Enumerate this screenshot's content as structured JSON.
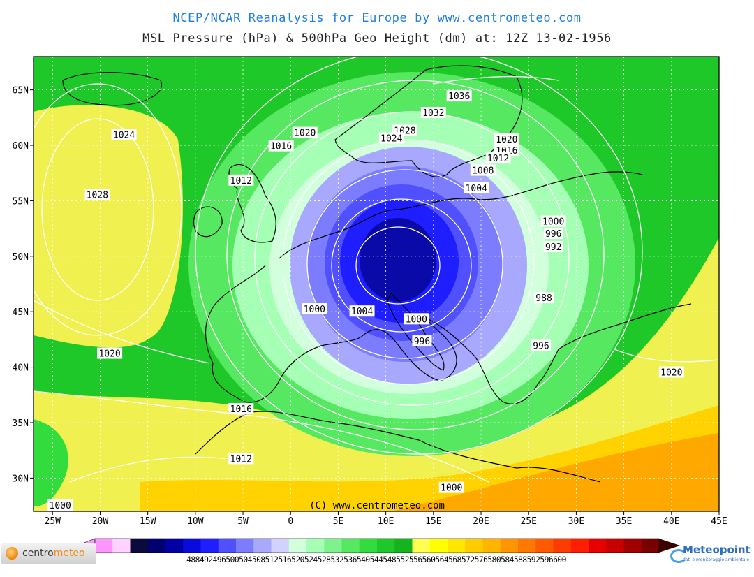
{
  "header": {
    "title": "NCEP/NCAR Reanalysis for Europe by www.centrometeo.com",
    "subtitle": "MSL Pressure (hPa) & 500hPa Geo Height (dm) at: 12Z 13-02-1956"
  },
  "map": {
    "lon_range": [
      -27,
      45
    ],
    "lat_range": [
      27,
      68
    ],
    "lat_ticks": [
      {
        "value": 30,
        "label": "30N"
      },
      {
        "value": 35,
        "label": "35N"
      },
      {
        "value": 40,
        "label": "40N"
      },
      {
        "value": 45,
        "label": "45N"
      },
      {
        "value": 50,
        "label": "50N"
      },
      {
        "value": 55,
        "label": "55N"
      },
      {
        "value": 60,
        "label": "60N"
      },
      {
        "value": 65,
        "label": "65N"
      }
    ],
    "lon_ticks": [
      {
        "value": -25,
        "label": "25W"
      },
      {
        "value": -20,
        "label": "20W"
      },
      {
        "value": -15,
        "label": "15W"
      },
      {
        "value": -10,
        "label": "10W"
      },
      {
        "value": -5,
        "label": "5W"
      },
      {
        "value": 0,
        "label": "0"
      },
      {
        "value": 5,
        "label": "5E"
      },
      {
        "value": 10,
        "label": "10E"
      },
      {
        "value": 15,
        "label": "15E"
      },
      {
        "value": 20,
        "label": "20E"
      },
      {
        "value": 25,
        "label": "25E"
      },
      {
        "value": 30,
        "label": "30E"
      },
      {
        "value": 35,
        "label": "35E"
      },
      {
        "value": 40,
        "label": "40E"
      },
      {
        "value": 45,
        "label": "45E"
      }
    ],
    "isobar_labels": [
      {
        "text": "1036",
        "lon": 17.7,
        "lat": 64.4
      },
      {
        "text": "1032",
        "lon": 15.0,
        "lat": 62.9
      },
      {
        "text": "1028",
        "lon": 12.0,
        "lat": 61.3
      },
      {
        "text": "1024",
        "lon": 10.6,
        "lat": 60.6
      },
      {
        "text": "1020",
        "lon": 1.5,
        "lat": 61.1
      },
      {
        "text": "1016",
        "lon": -1.0,
        "lat": 59.9
      },
      {
        "text": "1012",
        "lon": -5.2,
        "lat": 56.8
      },
      {
        "text": "1020",
        "lon": 22.7,
        "lat": 60.5
      },
      {
        "text": "1016",
        "lon": 22.7,
        "lat": 59.5
      },
      {
        "text": "1012",
        "lon": 21.8,
        "lat": 58.8
      },
      {
        "text": "1008",
        "lon": 20.2,
        "lat": 57.7
      },
      {
        "text": "1004",
        "lon": 19.5,
        "lat": 56.1
      },
      {
        "text": "1000",
        "lon": 27.6,
        "lat": 53.1
      },
      {
        "text": "996",
        "lon": 27.6,
        "lat": 52.0
      },
      {
        "text": "992",
        "lon": 27.6,
        "lat": 50.8
      },
      {
        "text": "988",
        "lon": 26.6,
        "lat": 46.2
      },
      {
        "text": "1000",
        "lon": 2.5,
        "lat": 45.2
      },
      {
        "text": "1004",
        "lon": 7.5,
        "lat": 45.0
      },
      {
        "text": "1000",
        "lon": 13.2,
        "lat": 44.3
      },
      {
        "text": "996",
        "lon": 13.8,
        "lat": 42.3
      },
      {
        "text": "996",
        "lon": 26.3,
        "lat": 41.9
      },
      {
        "text": "1020",
        "lon": 40.0,
        "lat": 39.5
      },
      {
        "text": "1024",
        "lon": -17.5,
        "lat": 60.9
      },
      {
        "text": "1028",
        "lon": -20.3,
        "lat": 55.5
      },
      {
        "text": "1020",
        "lon": -19.0,
        "lat": 41.2
      },
      {
        "text": "1016",
        "lon": -5.2,
        "lat": 36.2
      },
      {
        "text": "1012",
        "lon": -5.2,
        "lat": 31.7
      },
      {
        "text": "1000",
        "lon": 16.9,
        "lat": 29.1
      },
      {
        "text": "1000",
        "lon": -24.2,
        "lat": 27.5
      }
    ],
    "watermark": "(C) www.centrometeo.com"
  },
  "colorbar": {
    "colors": [
      "#ff96ff",
      "#ffd2ff",
      "#0a0a3c",
      "#000070",
      "#0000a5",
      "#0a0adc",
      "#1e1eff",
      "#5050ff",
      "#7c7cff",
      "#a8a8ff",
      "#d2d2ff",
      "#d2ffdc",
      "#a5ffb4",
      "#7ef28d",
      "#55e860",
      "#32dc3c",
      "#1ec828",
      "#14b41e",
      "#ffff50",
      "#ffff00",
      "#ffe600",
      "#ffcc00",
      "#ffb400",
      "#ff9600",
      "#ff7800",
      "#ff5a00",
      "#ff3c00",
      "#ff1e00",
      "#e60000",
      "#c80000",
      "#a00000",
      "#780000"
    ],
    "values_text": "488492496500504508512516520524528532536540544548552556560564568572576580584588592596600"
  },
  "logos": {
    "left_prefix": "centro",
    "left_suffix": "meteo",
    "right_name": "Meteopoint",
    "right_sub": "dati e monitoraggio ambientale"
  },
  "colors": {
    "title": "#1f7fe0",
    "low_core": "#0a0aa8",
    "high_fill": "#ffff50",
    "mid_fill": "#32dc3c"
  }
}
